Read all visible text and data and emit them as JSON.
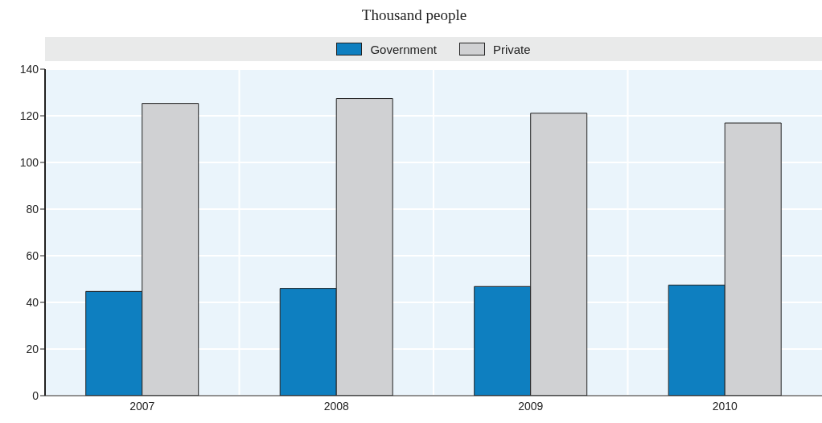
{
  "chart_data": {
    "type": "bar",
    "subtitle": "Thousand people",
    "categories": [
      "2007",
      "2008",
      "2009",
      "2010"
    ],
    "series": [
      {
        "name": "Government",
        "color": "#0e7fc0",
        "values": [
          44.7,
          46.0,
          46.8,
          47.4
        ]
      },
      {
        "name": "Private",
        "color": "#d0d1d3",
        "values": [
          125.3,
          127.4,
          121.1,
          116.9
        ]
      }
    ],
    "ylim": [
      0,
      140
    ],
    "yticks": [
      0,
      20,
      40,
      60,
      80,
      100,
      120,
      140
    ],
    "grid": true,
    "legend": "top"
  }
}
